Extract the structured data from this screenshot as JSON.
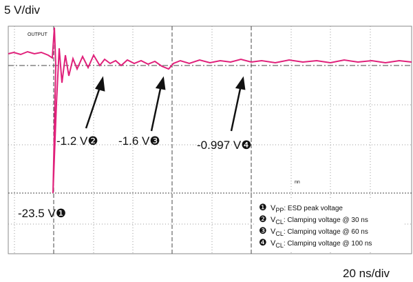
{
  "scale": {
    "vertical": "5 V/div",
    "horizontal": "20 ns/div"
  },
  "trace_label": "OUTPUT",
  "cursor_label": "nn",
  "annotations": [
    {
      "text": "-23.5 V",
      "marker": "❶"
    },
    {
      "text": "-1.2 V",
      "marker": "❷"
    },
    {
      "text": "-1.6 V",
      "marker": "❸"
    },
    {
      "text": "-0.997 V",
      "marker": "❹"
    }
  ],
  "legend": [
    {
      "marker": "❶",
      "symbol": "V",
      "subscript": "PP",
      "description": ": ESD peak voltage"
    },
    {
      "marker": "❷",
      "symbol": "V",
      "subscript": "CL",
      "description": ": Clamping voltage @ 30 ns"
    },
    {
      "marker": "❸",
      "symbol": "V",
      "subscript": "CL",
      "description": ": Clamping voltage @ 60 ns"
    },
    {
      "marker": "❹",
      "symbol": "V",
      "subscript": "CL",
      "description": ": Clamping voltage @ 100 ns"
    }
  ]
}
